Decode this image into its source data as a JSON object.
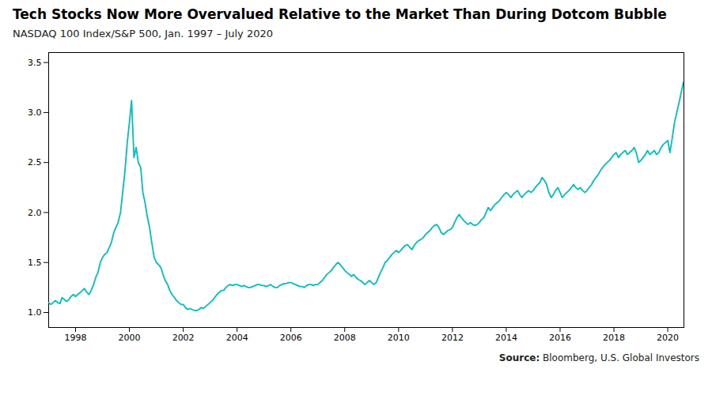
{
  "chart_data": {
    "type": "line",
    "title": "Tech Stocks Now More Overvalued Relative to the Market Than During Dotcom Bubble",
    "subtitle": "NASDAQ 100 Index/S&P 500, Jan. 1997 – July 2020",
    "source": "Source: Bloomberg, U.S. Global Investors",
    "color": "#00BFBF",
    "grid": false,
    "xlim": [
      1997.0,
      2020.6
    ],
    "xticks": [
      1998,
      2000,
      2002,
      2004,
      2006,
      2008,
      2010,
      2012,
      2014,
      2016,
      2018,
      2020
    ],
    "ylim": [
      0.85,
      3.6
    ],
    "yticks": [
      {
        "value": 1.0,
        "label": "1.0"
      },
      1.5,
      {
        "value": 2.0,
        "label": "2.0"
      },
      2.5,
      {
        "value": 3.0,
        "label": "3.0"
      },
      3.5
    ],
    "x": [
      1997.0,
      1997.08,
      1997.17,
      1997.25,
      1997.33,
      1997.42,
      1997.5,
      1997.58,
      1997.67,
      1997.75,
      1997.83,
      1997.92,
      1998.0,
      1998.08,
      1998.17,
      1998.25,
      1998.33,
      1998.42,
      1998.5,
      1998.58,
      1998.67,
      1998.75,
      1998.83,
      1998.92,
      1999.0,
      1999.08,
      1999.17,
      1999.25,
      1999.33,
      1999.42,
      1999.5,
      1999.58,
      1999.67,
      1999.75,
      1999.83,
      1999.92,
      2000.0,
      2000.08,
      2000.17,
      2000.25,
      2000.33,
      2000.42,
      2000.5,
      2000.58,
      2000.67,
      2000.75,
      2000.83,
      2000.92,
      2001.0,
      2001.08,
      2001.17,
      2001.25,
      2001.33,
      2001.42,
      2001.5,
      2001.58,
      2001.67,
      2001.75,
      2001.83,
      2001.92,
      2002.0,
      2002.08,
      2002.17,
      2002.25,
      2002.33,
      2002.42,
      2002.5,
      2002.58,
      2002.67,
      2002.75,
      2002.83,
      2002.92,
      2003.0,
      2003.08,
      2003.17,
      2003.25,
      2003.33,
      2003.42,
      2003.5,
      2003.58,
      2003.67,
      2003.75,
      2003.83,
      2003.92,
      2004.0,
      2004.08,
      2004.17,
      2004.25,
      2004.33,
      2004.42,
      2004.5,
      2004.58,
      2004.67,
      2004.75,
      2004.83,
      2004.92,
      2005.0,
      2005.08,
      2005.17,
      2005.25,
      2005.33,
      2005.42,
      2005.5,
      2005.58,
      2005.67,
      2005.75,
      2005.83,
      2005.92,
      2006.0,
      2006.08,
      2006.17,
      2006.25,
      2006.33,
      2006.42,
      2006.5,
      2006.58,
      2006.67,
      2006.75,
      2006.83,
      2006.92,
      2007.0,
      2007.08,
      2007.17,
      2007.25,
      2007.33,
      2007.42,
      2007.5,
      2007.58,
      2007.67,
      2007.75,
      2007.83,
      2007.92,
      2008.0,
      2008.08,
      2008.17,
      2008.25,
      2008.33,
      2008.42,
      2008.5,
      2008.58,
      2008.67,
      2008.75,
      2008.83,
      2008.92,
      2009.0,
      2009.08,
      2009.17,
      2009.25,
      2009.33,
      2009.42,
      2009.5,
      2009.58,
      2009.67,
      2009.75,
      2009.83,
      2009.92,
      2010.0,
      2010.08,
      2010.17,
      2010.25,
      2010.33,
      2010.42,
      2010.5,
      2010.58,
      2010.67,
      2010.75,
      2010.83,
      2010.92,
      2011.0,
      2011.08,
      2011.17,
      2011.25,
      2011.33,
      2011.42,
      2011.5,
      2011.58,
      2011.67,
      2011.75,
      2011.83,
      2011.92,
      2012.0,
      2012.08,
      2012.17,
      2012.25,
      2012.33,
      2012.42,
      2012.5,
      2012.58,
      2012.67,
      2012.75,
      2012.83,
      2012.92,
      2013.0,
      2013.08,
      2013.17,
      2013.25,
      2013.33,
      2013.42,
      2013.5,
      2013.58,
      2013.67,
      2013.75,
      2013.83,
      2013.92,
      2014.0,
      2014.08,
      2014.17,
      2014.25,
      2014.33,
      2014.42,
      2014.5,
      2014.58,
      2014.67,
      2014.75,
      2014.83,
      2014.92,
      2015.0,
      2015.08,
      2015.17,
      2015.25,
      2015.33,
      2015.42,
      2015.5,
      2015.58,
      2015.67,
      2015.75,
      2015.83,
      2015.92,
      2016.0,
      2016.08,
      2016.17,
      2016.25,
      2016.33,
      2016.42,
      2016.5,
      2016.58,
      2016.67,
      2016.75,
      2016.83,
      2016.92,
      2017.0,
      2017.08,
      2017.17,
      2017.25,
      2017.33,
      2017.42,
      2017.5,
      2017.58,
      2017.67,
      2017.75,
      2017.83,
      2017.92,
      2018.0,
      2018.08,
      2018.17,
      2018.25,
      2018.33,
      2018.42,
      2018.5,
      2018.58,
      2018.67,
      2018.75,
      2018.83,
      2018.92,
      2019.0,
      2019.08,
      2019.17,
      2019.25,
      2019.33,
      2019.42,
      2019.5,
      2019.58,
      2019.67,
      2019.75,
      2019.83,
      2019.92,
      2020.0,
      2020.08,
      2020.17,
      2020.25,
      2020.42,
      2020.58
    ],
    "values": [
      1.1,
      1.08,
      1.1,
      1.12,
      1.1,
      1.09,
      1.15,
      1.13,
      1.11,
      1.13,
      1.16,
      1.18,
      1.16,
      1.18,
      1.2,
      1.22,
      1.24,
      1.2,
      1.18,
      1.22,
      1.28,
      1.35,
      1.4,
      1.5,
      1.55,
      1.58,
      1.6,
      1.65,
      1.7,
      1.8,
      1.85,
      1.9,
      2.0,
      2.2,
      2.4,
      2.7,
      2.9,
      3.12,
      2.55,
      2.65,
      2.5,
      2.45,
      2.2,
      2.1,
      1.95,
      1.85,
      1.7,
      1.55,
      1.5,
      1.48,
      1.45,
      1.38,
      1.32,
      1.28,
      1.22,
      1.18,
      1.15,
      1.12,
      1.1,
      1.08,
      1.08,
      1.05,
      1.03,
      1.04,
      1.03,
      1.02,
      1.02,
      1.03,
      1.05,
      1.04,
      1.06,
      1.08,
      1.1,
      1.12,
      1.15,
      1.18,
      1.2,
      1.22,
      1.22,
      1.25,
      1.27,
      1.28,
      1.27,
      1.28,
      1.28,
      1.27,
      1.26,
      1.27,
      1.26,
      1.25,
      1.25,
      1.26,
      1.27,
      1.28,
      1.28,
      1.27,
      1.27,
      1.26,
      1.27,
      1.28,
      1.26,
      1.25,
      1.25,
      1.27,
      1.28,
      1.29,
      1.29,
      1.3,
      1.3,
      1.29,
      1.28,
      1.27,
      1.26,
      1.26,
      1.25,
      1.27,
      1.28,
      1.28,
      1.27,
      1.28,
      1.28,
      1.3,
      1.32,
      1.35,
      1.38,
      1.4,
      1.42,
      1.45,
      1.48,
      1.5,
      1.48,
      1.45,
      1.42,
      1.4,
      1.38,
      1.36,
      1.38,
      1.35,
      1.33,
      1.32,
      1.3,
      1.28,
      1.3,
      1.32,
      1.3,
      1.28,
      1.3,
      1.35,
      1.4,
      1.45,
      1.5,
      1.52,
      1.55,
      1.58,
      1.6,
      1.62,
      1.6,
      1.62,
      1.65,
      1.67,
      1.68,
      1.65,
      1.63,
      1.67,
      1.7,
      1.72,
      1.73,
      1.75,
      1.78,
      1.8,
      1.82,
      1.85,
      1.87,
      1.88,
      1.85,
      1.8,
      1.78,
      1.8,
      1.82,
      1.83,
      1.85,
      1.9,
      1.95,
      1.98,
      1.95,
      1.92,
      1.9,
      1.88,
      1.9,
      1.88,
      1.87,
      1.88,
      1.9,
      1.93,
      1.95,
      2.0,
      2.05,
      2.02,
      2.05,
      2.08,
      2.1,
      2.12,
      2.15,
      2.18,
      2.2,
      2.18,
      2.15,
      2.18,
      2.2,
      2.22,
      2.18,
      2.15,
      2.18,
      2.2,
      2.22,
      2.2,
      2.22,
      2.25,
      2.28,
      2.3,
      2.35,
      2.32,
      2.28,
      2.2,
      2.15,
      2.18,
      2.22,
      2.25,
      2.2,
      2.15,
      2.18,
      2.2,
      2.22,
      2.25,
      2.28,
      2.25,
      2.23,
      2.25,
      2.22,
      2.2,
      2.22,
      2.25,
      2.28,
      2.32,
      2.35,
      2.38,
      2.42,
      2.45,
      2.48,
      2.5,
      2.52,
      2.55,
      2.58,
      2.6,
      2.55,
      2.58,
      2.6,
      2.62,
      2.58,
      2.6,
      2.62,
      2.65,
      2.6,
      2.5,
      2.52,
      2.55,
      2.58,
      2.62,
      2.58,
      2.6,
      2.62,
      2.58,
      2.6,
      2.65,
      2.68,
      2.7,
      2.72,
      2.6,
      2.75,
      2.9,
      3.1,
      3.3
    ]
  }
}
